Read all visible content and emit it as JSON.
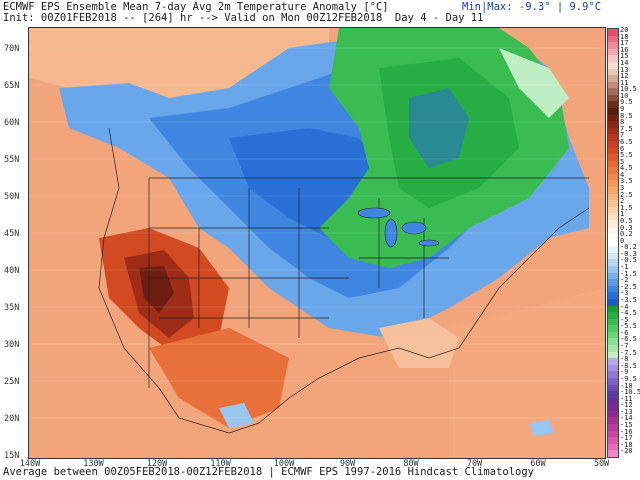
{
  "header": {
    "title": "ECMWF EPS Ensemble Mean 7-day Avg 2m Temperature Anomaly [°C]",
    "init": "Init: 00Z01FEB2018 -- [264] hr --> Valid on Mon 00Z12FEB2018  Day 4 - Day 11",
    "minmax": "Min|Max: -9.3° | 9.9°C"
  },
  "footer": "Average between 00Z05FEB2018-00Z12FEB2018 | ECMWF EPS 1997-2016 Hindcast Climatology",
  "lat_labels": [
    "70N",
    "65N",
    "60N",
    "55N",
    "50N",
    "45N",
    "40N",
    "35N",
    "30N",
    "25N",
    "20N",
    "15N"
  ],
  "lon_labels": [
    "140W",
    "130W",
    "120W",
    "110W",
    "100W",
    "90W",
    "80W",
    "70W",
    "60W",
    "50W"
  ],
  "colorbar": {
    "levels": [
      "20",
      "18",
      "17",
      "16",
      "15",
      "14",
      "13",
      "12",
      "11",
      "10.5",
      "10",
      "9.5",
      "9",
      "8.5",
      "8",
      "7.5",
      "7",
      "6.5",
      "6",
      "5.5",
      "5",
      "4.5",
      "4",
      "3.5",
      "3",
      "2.5",
      "2",
      "1.5",
      "1",
      "0.5",
      "0.3",
      "0.2",
      "0",
      "-0.2",
      "-0.3",
      "-0.5",
      "-1",
      "-1.5",
      "-2",
      "-2.5",
      "-3",
      "-3.5",
      "-4",
      "-4.5",
      "-5",
      "-5.5",
      "-6",
      "-6.5",
      "-7",
      "-7.5",
      "-8",
      "-8.5",
      "-9",
      "-9.5",
      "-10",
      "-10.5",
      "-11",
      "-12",
      "-13",
      "-14",
      "-15",
      "-16",
      "-17",
      "-18",
      "-20"
    ],
    "colors": [
      "#e0506a",
      "#e86a80",
      "#f08a9a",
      "#f5a8b4",
      "#f9c6cc",
      "#f5dcd0",
      "#ecc9b8",
      "#d8ab98",
      "#c48c7a",
      "#a86a5a",
      "#8a4a3a",
      "#702818",
      "#5a1a0c",
      "#761e10",
      "#8e2614",
      "#a42e18",
      "#b8361c",
      "#c84020",
      "#d44c24",
      "#de5a2c",
      "#e66a34",
      "#ec7a40",
      "#f08a4c",
      "#f39a5a",
      "#f5a86a",
      "#f7b67c",
      "#f8c490",
      "#f9d2a6",
      "#fae0c0",
      "#fcecdc",
      "#fdf6ee",
      "#ffffff",
      "#ffffff",
      "#e8f2fa",
      "#d2e6f6",
      "#b8d8f2",
      "#98c6ee",
      "#78b2ea",
      "#5a9ce6",
      "#3e86e0",
      "#2a6fd6",
      "#1e5ac8",
      "#1a9a3a",
      "#28ac44",
      "#3abc52",
      "#50c864",
      "#6ad478",
      "#86de90",
      "#a2e6aa",
      "#c0eec4",
      "#b8a8e6",
      "#a490dc",
      "#9078d0",
      "#7c62c4",
      "#6a4eb6",
      "#5a3ca6",
      "#6a2e96",
      "#7a2a8e",
      "#8c2c8e",
      "#a0348e",
      "#b43e96",
      "#c64aa0",
      "#d65aac",
      "#e46cba",
      "#f086cc"
    ]
  }
}
